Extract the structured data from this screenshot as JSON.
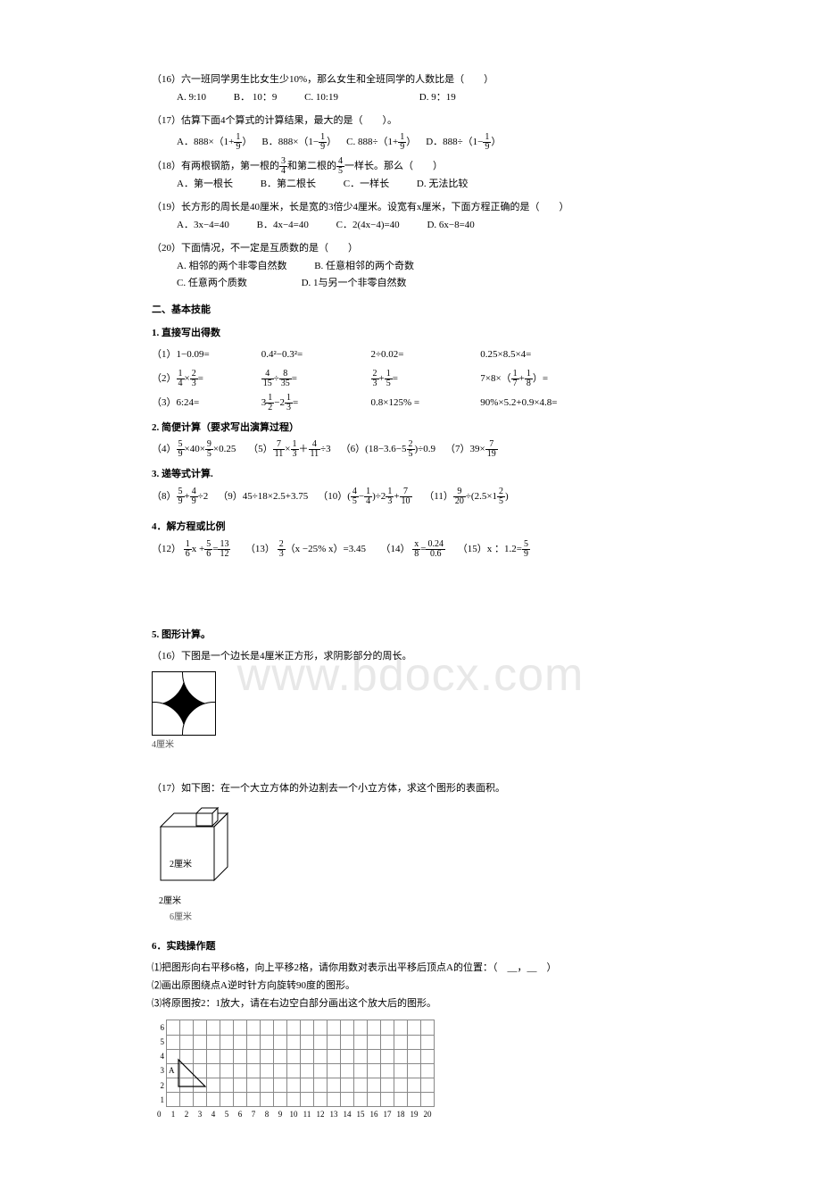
{
  "watermark": "www.bdocx.com",
  "q16": {
    "stem": "（16）六一班同学男生比女生少10%，那么女生和全班同学的人数比是（　　）",
    "opts": [
      "A. 9:10",
      "B． 10：9",
      "C. 10:19",
      "D. 9：19"
    ]
  },
  "q17": {
    "stem": "（17）估算下面4个算式的计算结果，最大的是（　　）。",
    "A_pre": "A．888×（1+",
    "A_post": "）",
    "B_pre": "B．888×（1−",
    "B_post": "）",
    "C_pre": "C. 888÷（1+",
    "C_post": "）",
    "D_pre": "D．888÷（1−",
    "D_post": "）",
    "frac_n": "1",
    "frac_d": "9"
  },
  "q18": {
    "stem_a": "（18）有两根钢筋，第一根的",
    "stem_b": "和第二根的",
    "stem_c": "一样长。那么（　　）",
    "f1n": "3",
    "f1d": "4",
    "f2n": "4",
    "f2d": "5",
    "opts": [
      "A．第一根长",
      "B．第二根长",
      "C．一样长",
      "D. 无法比较"
    ]
  },
  "q19": {
    "stem": "（19）长方形的周长是40厘米，长是宽的3倍少4厘米。设宽有x厘米，下面方程正确的是（　　）",
    "opts": [
      "A．3x−4=40",
      "B．4x−4=40",
      "C．2(4x−4)=40",
      "D. 6x−8=40"
    ]
  },
  "q20": {
    "stem": "（20）下面情况，不一定是互质数的是（　　）",
    "opts": [
      "A. 相邻的两个非零自然数",
      "B. 任意相邻的两个奇数",
      "C. 任意两个质数",
      "D. 1与另一个非零自然数"
    ]
  },
  "sec2": "二、基本技能",
  "sub1": "1. 直接写出得数",
  "r1": {
    "label": "（1）",
    "c1": "1−0.09=",
    "c2": "0.4²−0.3²=",
    "c3": "2÷0.02=",
    "c4": "0.25×8.5×4="
  },
  "r2": {
    "label": "（2）",
    "c1_a": "×",
    "c1_f1n": "1",
    "c1_f1d": "4",
    "c1_f2n": "2",
    "c1_f2d": "3",
    "c1_eq": "=",
    "c2_f1n": "4",
    "c2_f1d": "15",
    "c2_op": "÷",
    "c2_f2n": "8",
    "c2_f2d": "35",
    "c2_eq": "=",
    "c3_f1n": "2",
    "c3_f1d": "3",
    "c3_op": "+",
    "c3_f2n": "1",
    "c3_f2d": "5",
    "c3_eq": "=",
    "c4_a": "7×8×（",
    "c4_f1n": "1",
    "c4_f1d": "7",
    "c4_op": "+",
    "c4_f2n": "1",
    "c4_f2d": "8",
    "c4_b": "）="
  },
  "r3": {
    "label": "（3）",
    "c1": "6:24=",
    "c2_a": "3",
    "c2_f1n": "1",
    "c2_f1d": "2",
    "c2_op": "−2",
    "c2_f2n": "1",
    "c2_f2d": "3",
    "c2_eq": "=",
    "c3": "0.8×125% =",
    "c4": "90%×5.2+0.9×4.8="
  },
  "sub2": "2. 简便计算（要求写出演算过程）",
  "r4": {
    "p4_label": "（4）",
    "p4_f1n": "5",
    "p4_f1d": "9",
    "p4_a": "×40×",
    "p4_f2n": "9",
    "p4_f2d": "5",
    "p4_b": "×0.25",
    "p5_label": "（5）",
    "p5_f1n": "7",
    "p5_f1d": "11",
    "p5_a": "×",
    "p5_f2n": "1",
    "p5_f2d": "3",
    "p5_b": "＋",
    "p5_f3n": "4",
    "p5_f3d": "11",
    "p5_c": "÷3",
    "p6_label": "（6）(18−3.6−5",
    "p6_fn": "2",
    "p6_fd": "5",
    "p6_b": ")÷0.9",
    "p7_label": "（7）39×",
    "p7_fn": "7",
    "p7_fd": "19"
  },
  "sub3": "3. 递等式计算.",
  "r5": {
    "p8_label": "（8）",
    "p8_f1n": "5",
    "p8_f1d": "9",
    "p8_a": "+",
    "p8_f2n": "4",
    "p8_f2d": "9",
    "p8_b": "÷2",
    "p9": "（9）45÷18×2.5+3.75",
    "p10_label": "（10）(",
    "p10_f1n": "4",
    "p10_f1d": "5",
    "p10_a": "−",
    "p10_f2n": "1",
    "p10_f2d": "4",
    "p10_b": ")÷2",
    "p10_f3n": "1",
    "p10_f3d": "3",
    "p10_c": "+",
    "p10_f4n": "7",
    "p10_f4d": "10",
    "p11_label": "（11）",
    "p11_f1n": "9",
    "p11_f1d": "20",
    "p11_a": "÷(2.5×1",
    "p11_f2n": "2",
    "p11_f2d": "5",
    "p11_b": ")"
  },
  "sub4": "4．解方程或比例",
  "r6": {
    "p12_label": "（12）",
    "p12_f1n": "1",
    "p12_f1d": "6",
    "p12_a": "x +",
    "p12_f2n": "5",
    "p12_f2d": "6",
    "p12_b": "=",
    "p12_f3n": "13",
    "p12_f3d": "12",
    "p13_label": "（13）",
    "p13_fn": "2",
    "p13_fd": "3",
    "p13_a": "（x −25% x）=3.45",
    "p14_label": "（14）",
    "p14_f1n": "x",
    "p14_f1d": "8",
    "p14_a": "=",
    "p14_f2n": "0.24",
    "p14_f2d": "0.6",
    "p15_label": "（15）x ：1.2=",
    "p15_fn": "5",
    "p15_fd": "9"
  },
  "sub5": "5. 图形计算。",
  "q16b": "（16）下图是一个边长是4厘米正方形，求阴影部分的周长。",
  "fig16_label": "4厘米",
  "q17b": "（17）如下图：在一个大立方体的外边割去一个小立方体，求这个图形的表面积。",
  "fig17_labels": {
    "small": "2厘米",
    "big": "6厘米"
  },
  "sub6": "6．实践操作题",
  "op1_a": "⑴把图形向右平移6格，向上平移2格，请你用数对表示出平移后顶点A的位置：（　__，__　）",
  "op2": "⑵画出原图绕点A逆时针方向旋转90度的图形。",
  "op3": "⑶将原图按2：1放大，请在右边空白部分画出这个放大后的图形。",
  "grid": {
    "rows": 6,
    "cols": 20,
    "ylabels": [
      "6",
      "5",
      "4",
      "3",
      "2",
      "1"
    ],
    "xlabels": [
      "0",
      "1",
      "2",
      "3",
      "4",
      "5",
      "6",
      "7",
      "8",
      "9",
      "10",
      "11",
      "12",
      "13",
      "14",
      "15",
      "16",
      "17",
      "18",
      "19",
      "20"
    ],
    "A_label": "A",
    "A_row": 3,
    "A_col": 1,
    "triangle": [
      [
        1,
        3
      ],
      [
        1,
        1
      ],
      [
        3,
        1
      ]
    ]
  }
}
